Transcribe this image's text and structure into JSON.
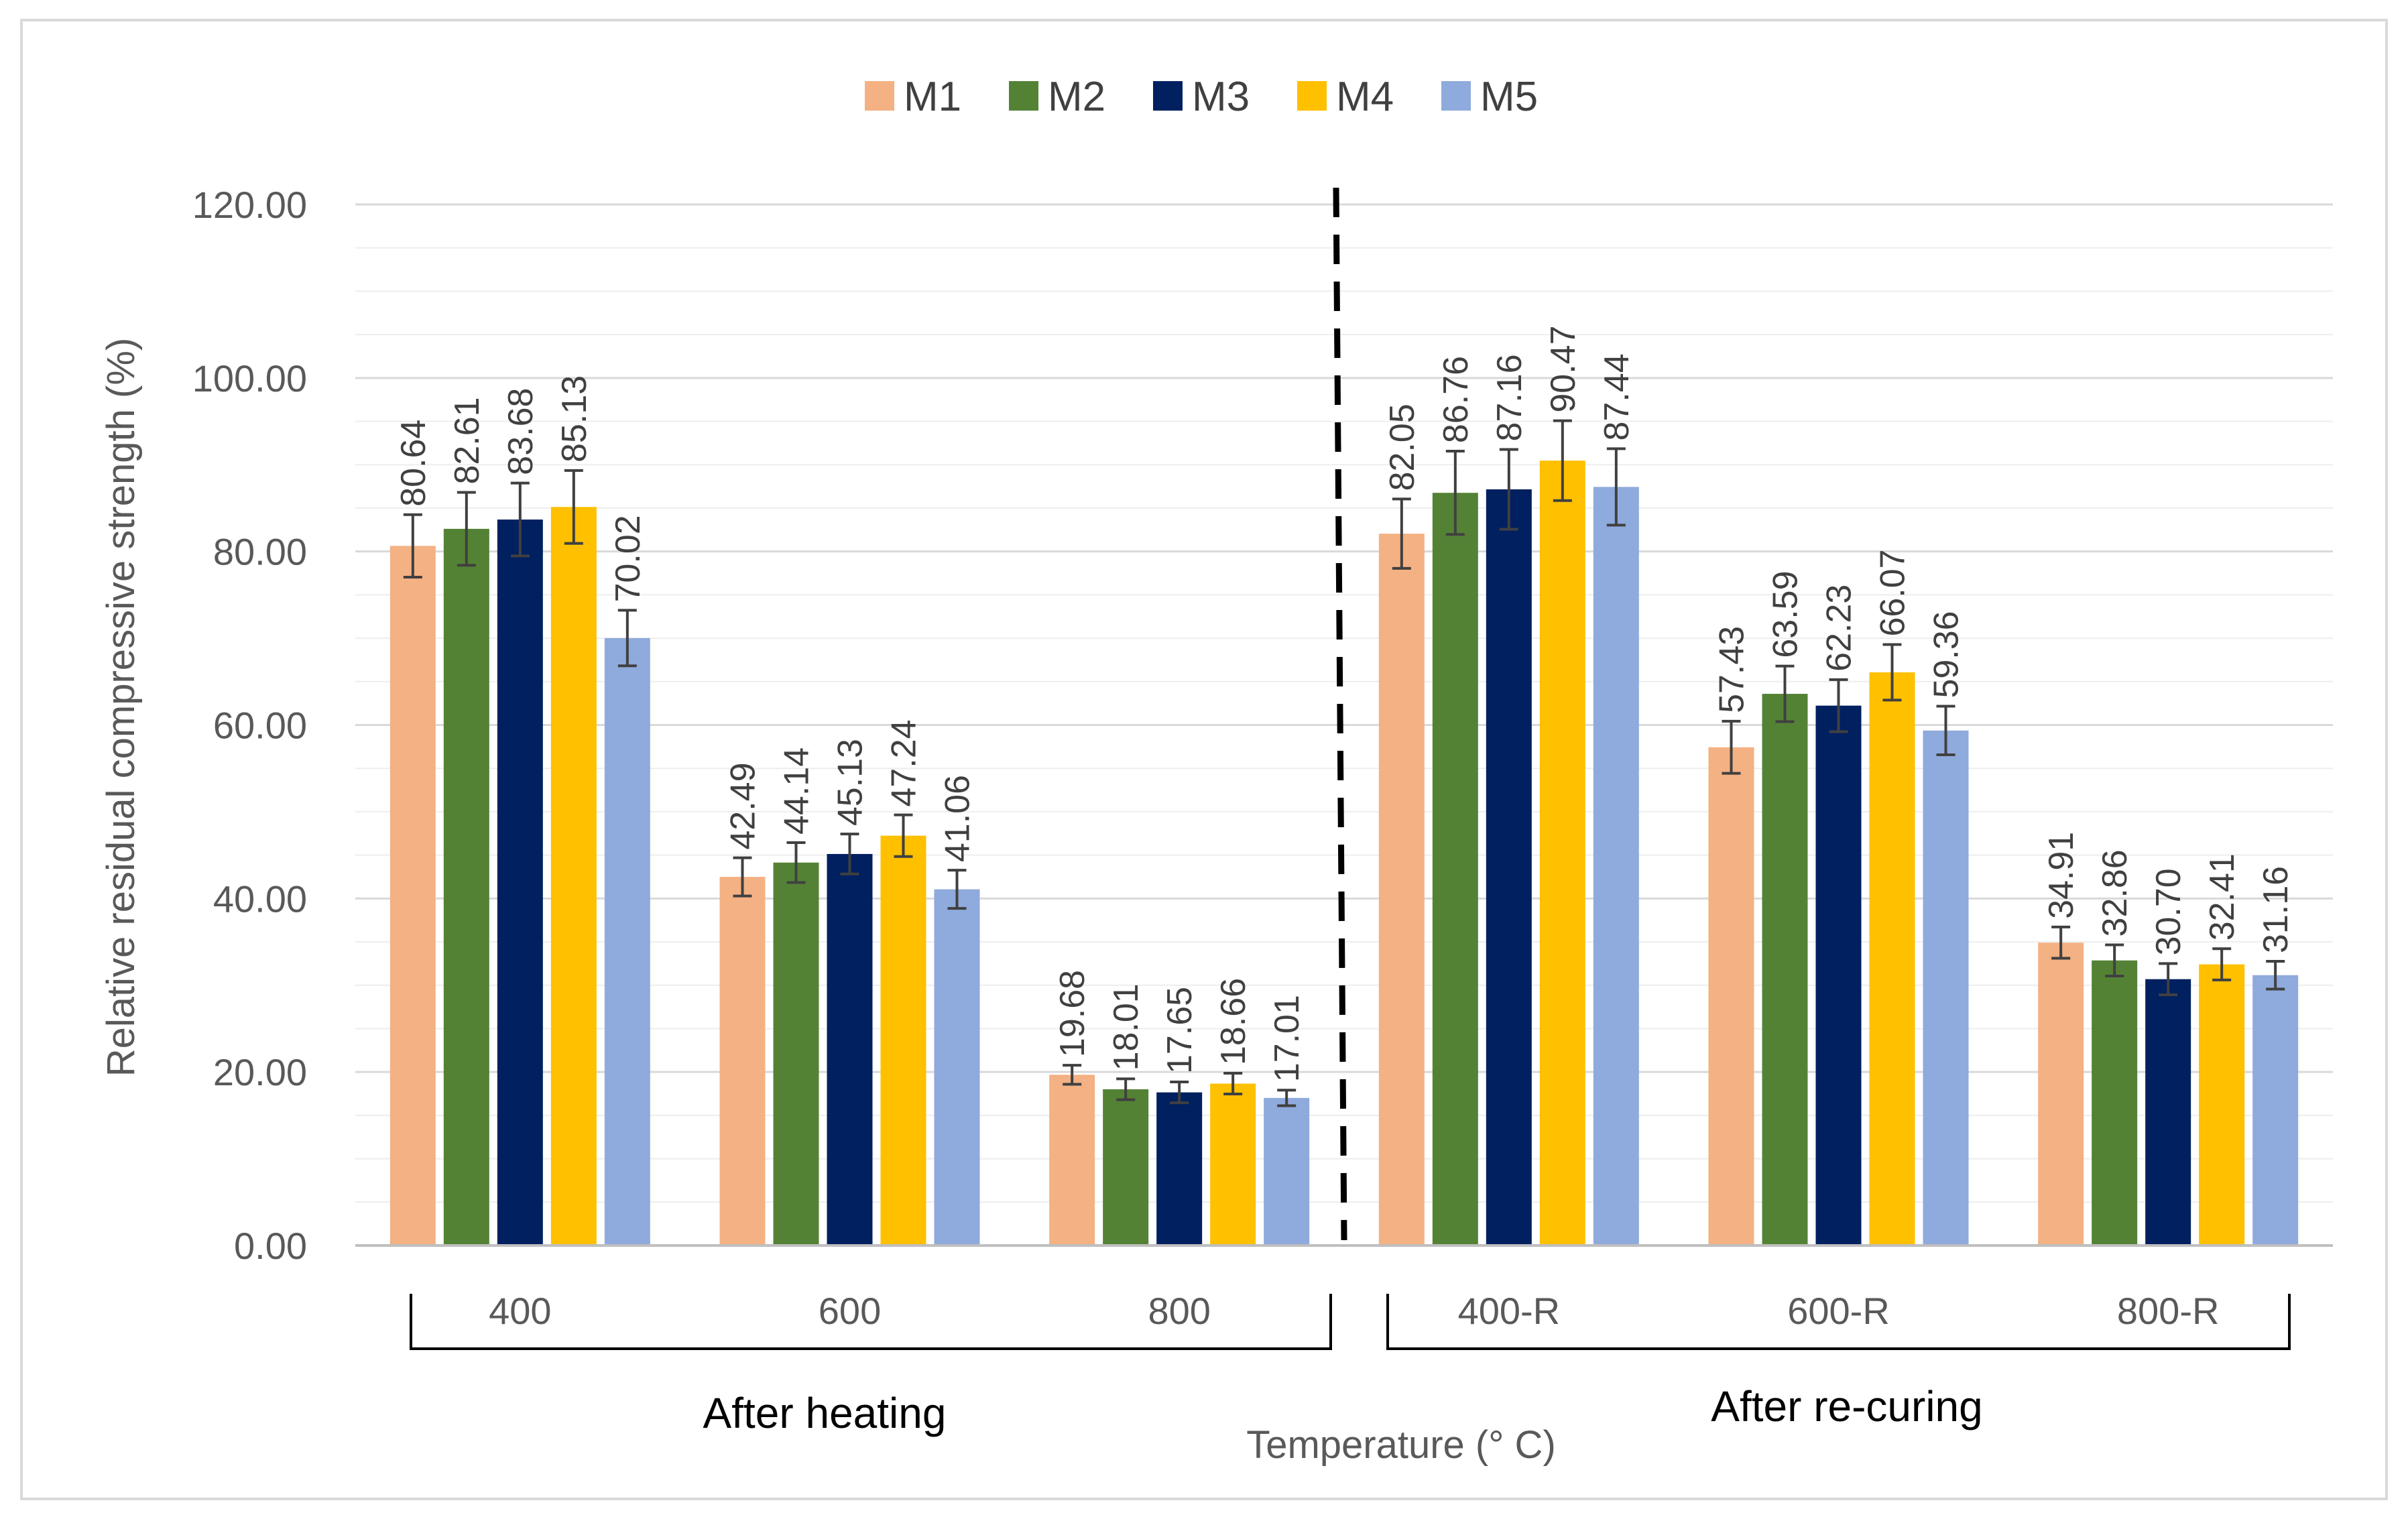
{
  "chart_data": {
    "type": "bar",
    "title": "",
    "xlabel": "Temperature (° C)",
    "ylabel": "Relative residual compressive strength (%)",
    "ylim": [
      0,
      120
    ],
    "yticks": [
      "0.00",
      "20.00",
      "40.00",
      "60.00",
      "80.00",
      "100.00",
      "120.00"
    ],
    "grid": true,
    "legend_position": "top-center",
    "categories": [
      "400",
      "600",
      "800",
      "400-R",
      "600-R",
      "800-R"
    ],
    "groups": [
      {
        "label": "After heating",
        "categories": [
          "400",
          "600",
          "800"
        ]
      },
      {
        "label": "After re-curing",
        "categories": [
          "400-R",
          "600-R",
          "800-R"
        ]
      }
    ],
    "divider": "between 800 and 400-R",
    "series": [
      {
        "name": "M1",
        "color": "#F4B183",
        "values": [
          80.64,
          42.49,
          19.68,
          82.05,
          57.43,
          34.91
        ],
        "labels": [
          "80.64",
          "42.49",
          "19.68",
          "82.05",
          "57.43",
          "34.91"
        ],
        "errors": [
          3.6,
          2.2,
          1.1,
          4.0,
          3.0,
          1.8
        ]
      },
      {
        "name": "M2",
        "color": "#548235",
        "values": [
          82.61,
          44.14,
          18.01,
          86.76,
          63.59,
          32.86
        ],
        "labels": [
          "82.61",
          "44.14",
          "18.01",
          "86.76",
          "63.59",
          "32.86"
        ],
        "errors": [
          4.2,
          2.3,
          1.2,
          4.8,
          3.2,
          1.8
        ]
      },
      {
        "name": "M3",
        "color": "#002060",
        "values": [
          83.68,
          45.13,
          17.65,
          87.16,
          62.23,
          30.7
        ],
        "labels": [
          "83.68",
          "45.13",
          "17.65",
          "87.16",
          "62.23",
          "30.70"
        ],
        "errors": [
          4.2,
          2.3,
          1.2,
          4.6,
          3.0,
          1.8
        ]
      },
      {
        "name": "M4",
        "color": "#FFC000",
        "values": [
          85.13,
          47.24,
          18.66,
          90.47,
          66.07,
          32.41
        ],
        "labels": [
          "85.13",
          "47.24",
          "18.66",
          "90.47",
          "66.07",
          "32.41"
        ],
        "errors": [
          4.2,
          2.4,
          1.2,
          4.6,
          3.2,
          1.8
        ]
      },
      {
        "name": "M5",
        "color": "#8FAADC",
        "values": [
          70.02,
          41.06,
          17.01,
          87.44,
          59.36,
          31.16
        ],
        "labels": [
          "70.02",
          "41.06",
          "17.01",
          "87.44",
          "59.36",
          "31.16"
        ],
        "errors": [
          3.2,
          2.2,
          0.9,
          4.4,
          2.8,
          1.6
        ]
      }
    ]
  }
}
